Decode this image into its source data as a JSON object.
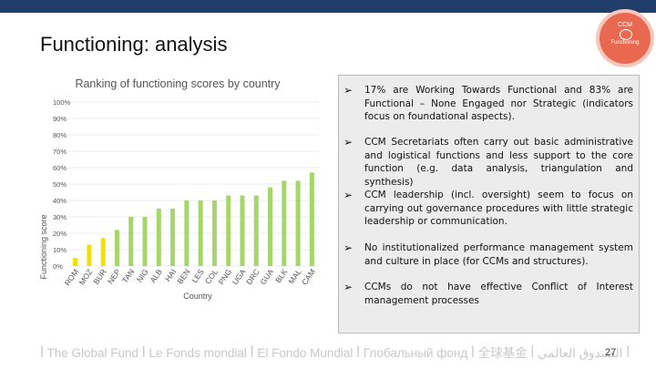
{
  "slide": {
    "title": "Functioning: analysis",
    "page_number": "27",
    "footer_text": "ꟾ The Global Fund ꟾ Le Fonds mondial ꟾ El Fondo Mundial ꟾ Глобальный фонд ꟾ 全球基金 ꟾ الصندوق العالمي ꟾ",
    "logo": {
      "line1": "CCM",
      "line2": "Functioning"
    }
  },
  "chart_data": {
    "type": "bar",
    "title": "Ranking of functioning scores by country",
    "xlabel": "Country",
    "ylabel": "Functioning score",
    "ylim": [
      0,
      100
    ],
    "yticks": [
      "0%",
      "10%",
      "20%",
      "30%",
      "40%",
      "50%",
      "60%",
      "70%",
      "80%",
      "90%",
      "100%"
    ],
    "categories": [
      "ROM",
      "MOZ",
      "BUR",
      "NEP",
      "TAN",
      "NIG",
      "ALB",
      "HAI",
      "BEN",
      "LES",
      "COL",
      "PNG",
      "UGA",
      "DRC",
      "GUA",
      "BLK",
      "MAL",
      "CAM"
    ],
    "values": [
      5,
      13,
      17,
      22,
      30,
      30,
      35,
      35,
      40,
      40,
      40,
      43,
      43,
      43,
      48,
      52,
      52,
      57
    ],
    "colors": [
      "#f2e000",
      "#f2e000",
      "#f2e000",
      "#a6d66a",
      "#a6d66a",
      "#a6d66a",
      "#a6d66a",
      "#a6d66a",
      "#a6d66a",
      "#a6d66a",
      "#a6d66a",
      "#a6d66a",
      "#a6d66a",
      "#a6d66a",
      "#a6d66a",
      "#a6d66a",
      "#a6d66a",
      "#a6d66a"
    ],
    "grid": true,
    "legend": "none"
  },
  "panel": {
    "bullets": [
      {
        "text": "17% are Working Towards Functional and 83% are Functional – None Engaged nor Strategic (indicators focus on foundational aspects)."
      },
      {
        "text": "CCM Secretariats often carry out basic administrative and logistical functions and less support to the core function (e.g. data analysis, triangulation and synthesis)"
      },
      {
        "text": "CCM leadership (incl. oversight) seem to focus on carrying out governance procedures with little strategic leadership or communication."
      },
      {
        "text": "No institutionalized performance management system and culture in place (for CCMs and structures)."
      },
      {
        "text": "CCMs do not have effective Conflict of Interest management processes"
      }
    ]
  },
  "colors": {
    "topbar": "#1f3f6a",
    "logo": "#e8694f",
    "bar_yellow": "#f2e000",
    "bar_green": "#a6d66a",
    "grid": "#d9d9d9"
  }
}
